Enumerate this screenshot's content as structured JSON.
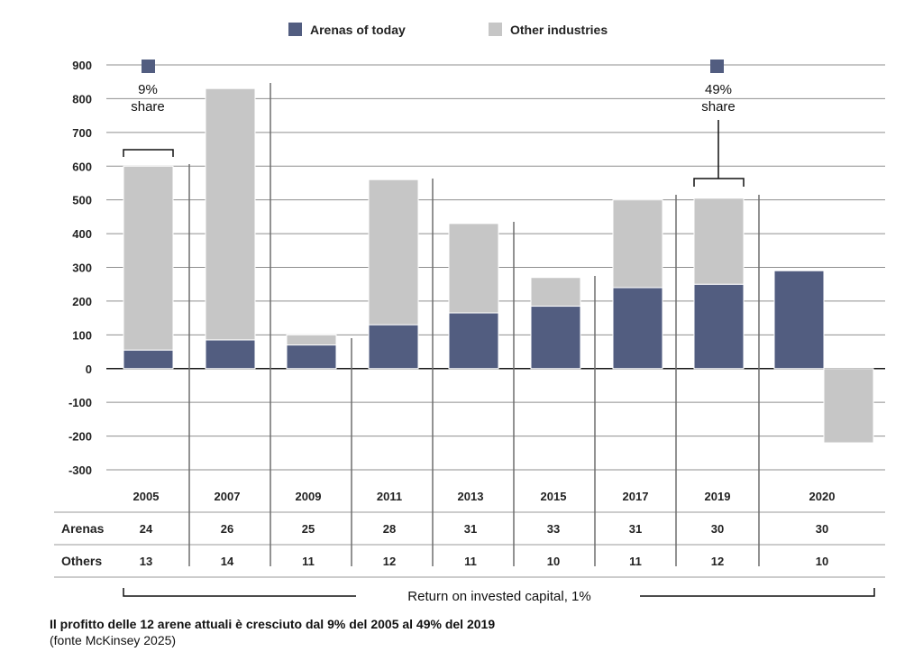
{
  "chart_data": {
    "type": "bar",
    "stacked": true,
    "legend": {
      "position": "top",
      "items": [
        {
          "name": "Arenas of today",
          "color": "#525d80"
        },
        {
          "name": "Other industries",
          "color": "#c6c6c6"
        }
      ]
    },
    "categories": [
      "2005",
      "2007",
      "2009",
      "2011",
      "2013",
      "2015",
      "2017",
      "2019",
      "2020"
    ],
    "series": [
      {
        "name": "Arenas of today",
        "color": "#525d80",
        "values": [
          55,
          85,
          70,
          130,
          165,
          185,
          240,
          250,
          290
        ]
      },
      {
        "name": "Other industries",
        "color": "#c6c6c6",
        "values": [
          545,
          745,
          30,
          430,
          265,
          85,
          260,
          255,
          -220
        ]
      }
    ],
    "ylim": [
      -300,
      900
    ],
    "yticks": [
      900,
      800,
      700,
      600,
      500,
      400,
      300,
      200,
      100,
      0,
      -100,
      -200,
      -300
    ],
    "grid": true,
    "share_annotations": [
      {
        "category": "2005",
        "line1": "9%",
        "line2": "share"
      },
      {
        "category": "2019",
        "line1": "49%",
        "line2": "share"
      }
    ],
    "table": {
      "rows": [
        {
          "label": "Arenas",
          "values": [
            "24",
            "26",
            "25",
            "28",
            "31",
            "33",
            "31",
            "30",
            "30"
          ]
        },
        {
          "label": "Others",
          "values": [
            "13",
            "14",
            "11",
            "12",
            "11",
            "10",
            "11",
            "12",
            "10"
          ]
        }
      ]
    },
    "bracket_label": "Return on invested capital, 1%"
  },
  "caption": {
    "main": "Il profitto delle 12 arene attuali è cresciuto dal 9% del 2005 al 49% del 2019",
    "source": "(fonte McKinsey 2025)"
  }
}
